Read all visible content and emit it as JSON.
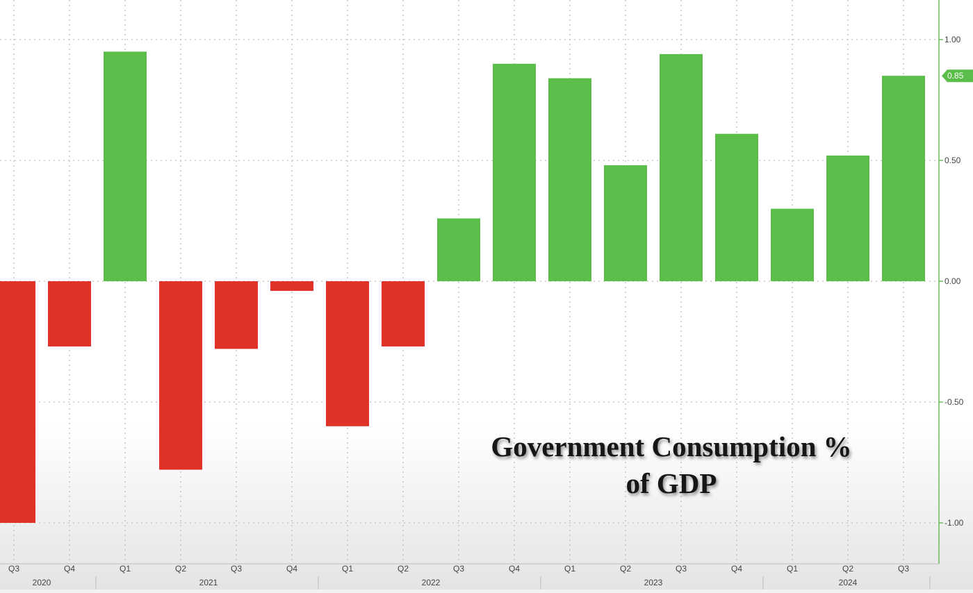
{
  "chart_data": {
    "type": "bar",
    "categories": [
      "Q3",
      "Q4",
      "Q1",
      "Q2",
      "Q3",
      "Q4",
      "Q1",
      "Q2",
      "Q3",
      "Q4",
      "Q1",
      "Q2",
      "Q3",
      "Q4",
      "Q1",
      "Q2",
      "Q3"
    ],
    "years": [
      {
        "label": "2020",
        "start": 0,
        "end": 1
      },
      {
        "label": "2021",
        "start": 2,
        "end": 5
      },
      {
        "label": "2022",
        "start": 6,
        "end": 9
      },
      {
        "label": "2023",
        "start": 10,
        "end": 13
      },
      {
        "label": "2024",
        "start": 14,
        "end": 16
      }
    ],
    "values": [
      -1.0,
      -0.27,
      0.95,
      -0.78,
      -0.28,
      -0.04,
      -0.6,
      -0.27,
      0.26,
      0.9,
      0.84,
      0.48,
      0.94,
      0.61,
      0.3,
      0.52,
      0.85
    ],
    "ylim": [
      -1.1,
      1.1
    ],
    "yticks": [
      1.0,
      0.5,
      0.0,
      -0.5,
      -1.0
    ],
    "ytick_labels": [
      "1.00",
      "0.50",
      "0.00",
      "-0.50",
      "-1.00"
    ],
    "y_axis_position": "right",
    "last_value_label": "0.85",
    "grid": true,
    "colors": {
      "positive": "#5bbd4a",
      "negative": "#e03226",
      "axis": "#6dbb5c",
      "badge": "#5bbd4a",
      "background": "#ffffff",
      "grid": "#c8c8c8"
    },
    "annotation_lines": [
      "Government Consumption %",
      "of GDP"
    ]
  }
}
